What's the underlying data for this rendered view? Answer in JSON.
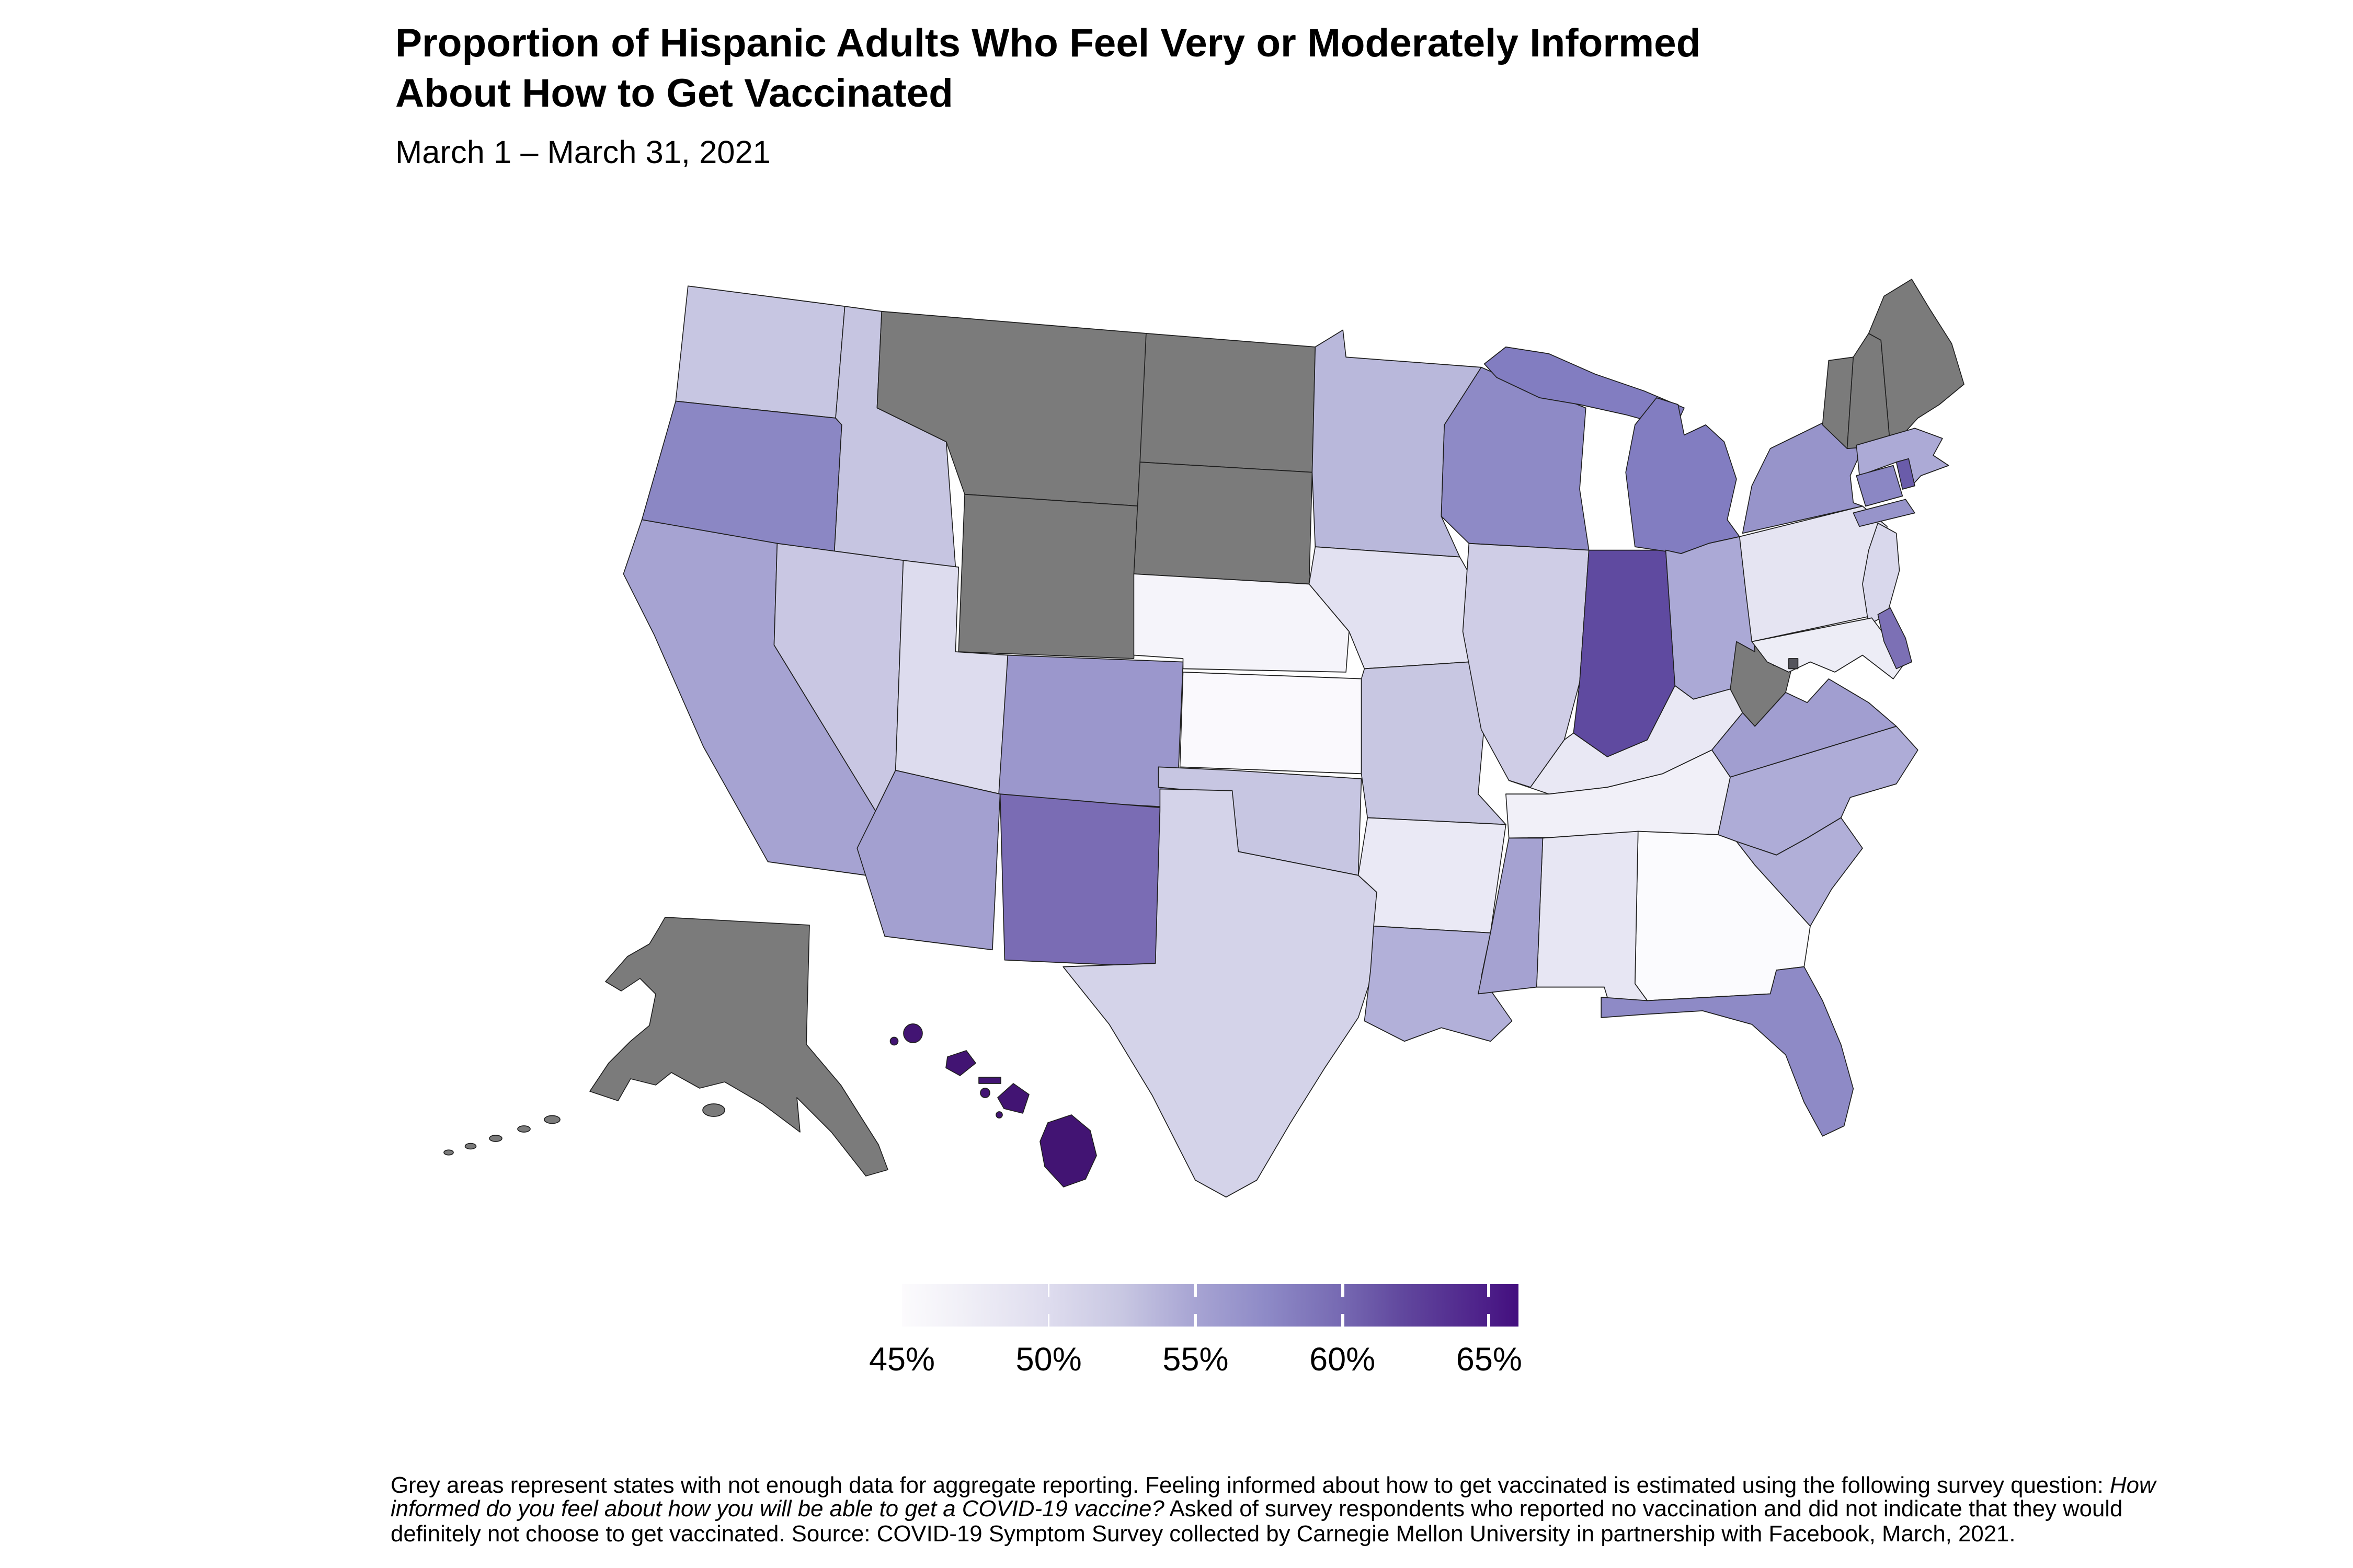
{
  "header": {
    "title_lines": [
      "Proportion of Hispanic Adults Who Feel Very or Moderately Informed",
      "About How to Get Vaccinated"
    ],
    "subtitle": "March 1 – March 31, 2021"
  },
  "footnote": {
    "part1": "Grey areas represent states with not enough data for aggregate reporting. Feeling informed about how to get vaccinated is estimated using the following survey question: ",
    "question_italic": "How informed do you feel about how you will be able to get a COVID-19 vaccine?",
    "part2": " Asked of survey respondents who reported no vaccination and did not indicate that they would definitely not choose to get vaccinated. Source: COVID-19 Symptom Survey collected by Carnegie Mellon University in partnership with Facebook, March, 2021."
  },
  "chart_data": {
    "type": "choropleth",
    "geography": "United States (50 states + DC), Albers-style projection with Alaska and Hawaii insets",
    "title": "Proportion of Hispanic Adults Who Feel Very or Moderately Informed About How to Get Vaccinated",
    "subtitle": "March 1 – March 31, 2021",
    "unit": "%",
    "legend": {
      "domain": [
        45,
        66
      ],
      "ticks": [
        50,
        55,
        60,
        65
      ],
      "tick_labels": [
        "45%",
        "50%",
        "55%",
        "60%",
        "65%"
      ],
      "tick_label_values": [
        45,
        50,
        55,
        60,
        65
      ],
      "gradient_stops": [
        [
          0,
          "#fcfbfd"
        ],
        [
          9.5,
          "#f1f0f7"
        ],
        [
          23.8,
          "#dedcee"
        ],
        [
          35.7,
          "#c8c7e2"
        ],
        [
          47.6,
          "#a7a4d3"
        ],
        [
          59.5,
          "#8d89c6"
        ],
        [
          71.4,
          "#7669b2"
        ],
        [
          81,
          "#61489e"
        ],
        [
          95.2,
          "#4c1e88"
        ],
        [
          100,
          "#430e7e"
        ]
      ],
      "no_data_color": "#7b7b7b",
      "dc_no_data_color": "#54545c"
    },
    "source": "COVID-19 Symptom Survey collected by Carnegie Mellon University in partnership with Facebook, March, 2021",
    "states": {
      "WA": {
        "name": "Washington",
        "value": 51,
        "color": "#c7c6e2"
      },
      "OR": {
        "name": "Oregon",
        "value": 57.5,
        "color": "#8b87c4"
      },
      "CA": {
        "name": "California",
        "value": 55,
        "color": "#a6a3d2"
      },
      "NV": {
        "name": "Nevada",
        "value": 51,
        "color": "#c9c7e3"
      },
      "ID": {
        "name": "Idaho",
        "value": 51,
        "color": "#c6c5e1"
      },
      "UT": {
        "name": "Utah",
        "value": 48.5,
        "color": "#dddcee"
      },
      "AZ": {
        "name": "Arizona",
        "value": 55,
        "color": "#a3a0d0"
      },
      "MT": {
        "name": "Montana",
        "value": null,
        "color": null
      },
      "WY": {
        "name": "Wyoming",
        "value": null,
        "color": null
      },
      "CO": {
        "name": "Colorado",
        "value": 56,
        "color": "#9b97cc"
      },
      "NM": {
        "name": "New Mexico",
        "value": 60.5,
        "color": "#7a6cb4"
      },
      "ND": {
        "name": "North Dakota",
        "value": null,
        "color": null
      },
      "SD": {
        "name": "South Dakota",
        "value": null,
        "color": null
      },
      "NE": {
        "name": "Nebraska",
        "value": 45.5,
        "color": "#f5f4fa"
      },
      "KS": {
        "name": "Kansas",
        "value": 44.5,
        "color": "#faf9fd"
      },
      "OK": {
        "name": "Oklahoma",
        "value": 51,
        "color": "#c7c6e2"
      },
      "TX": {
        "name": "Texas",
        "value": 49.5,
        "color": "#d4d3e9"
      },
      "MN": {
        "name": "Minnesota",
        "value": 52.5,
        "color": "#b9b8db"
      },
      "IA": {
        "name": "Iowa",
        "value": 48,
        "color": "#e2e1f1"
      },
      "MO": {
        "name": "Missouri",
        "value": 51,
        "color": "#c8c7e2"
      },
      "AR": {
        "name": "Arkansas",
        "value": 46.5,
        "color": "#eae9f5"
      },
      "LA": {
        "name": "Louisiana",
        "value": 53.5,
        "color": "#b2b0d9"
      },
      "WI": {
        "name": "Wisconsin",
        "value": 57.5,
        "color": "#8e8ac6"
      },
      "IL": {
        "name": "Illinois",
        "value": 50.5,
        "color": "#cfcde6"
      },
      "MS": {
        "name": "Mississippi",
        "value": 55,
        "color": "#a5a2d1"
      },
      "AL": {
        "name": "Alabama",
        "value": 47,
        "color": "#e7e6f3"
      },
      "GA": {
        "name": "Georgia",
        "value": 44,
        "color": "#fbfbfe"
      },
      "FL": {
        "name": "Florida",
        "value": 57.5,
        "color": "#8e8ac6"
      },
      "MI": {
        "name": "Michigan",
        "value": 58.5,
        "color": "#827dc1"
      },
      "IN": {
        "name": "Indiana",
        "value": 64,
        "color": "#5f4aa0"
      },
      "OH": {
        "name": "Ohio",
        "value": 54.5,
        "color": "#aba9d6"
      },
      "KY": {
        "name": "Kentucky",
        "value": 46.5,
        "color": "#e9e8f4"
      },
      "TN": {
        "name": "Tennessee",
        "value": 46,
        "color": "#f1f0f8"
      },
      "WV": {
        "name": "West Virginia",
        "value": null,
        "color": null
      },
      "VA": {
        "name": "Virginia",
        "value": 55,
        "color": "#a19ed0"
      },
      "NC": {
        "name": "North Carolina",
        "value": 54,
        "color": "#aeacd7"
      },
      "SC": {
        "name": "South Carolina",
        "value": 53.5,
        "color": "#b1afd8"
      },
      "PA": {
        "name": "Pennsylvania",
        "value": 47,
        "color": "#e5e4f2"
      },
      "NY": {
        "name": "New York",
        "value": 56,
        "color": "#9794ca"
      },
      "NJ": {
        "name": "New Jersey",
        "value": 49,
        "color": "#d9d8ec"
      },
      "CT": {
        "name": "Connecticut",
        "value": 57.5,
        "color": "#8b87c4"
      },
      "RI": {
        "name": "Rhode Island",
        "value": 62,
        "color": "#6a5caa"
      },
      "MA": {
        "name": "Massachusetts",
        "value": 54,
        "color": "#acaad6"
      },
      "VT": {
        "name": "Vermont",
        "value": null,
        "color": null
      },
      "NH": {
        "name": "New Hampshire",
        "value": null,
        "color": null
      },
      "ME": {
        "name": "Maine",
        "value": null,
        "color": null
      },
      "MD": {
        "name": "Maryland",
        "value": 45,
        "color": "#ededf6"
      },
      "DE": {
        "name": "Delaware",
        "value": 60,
        "color": "#7c70b5"
      },
      "DC": {
        "name": "District of Columbia",
        "value": null,
        "color": null
      },
      "AK": {
        "name": "Alaska",
        "value": null,
        "color": null
      },
      "HI": {
        "name": "Hawaii",
        "value": 67,
        "color": "#421473"
      }
    }
  }
}
